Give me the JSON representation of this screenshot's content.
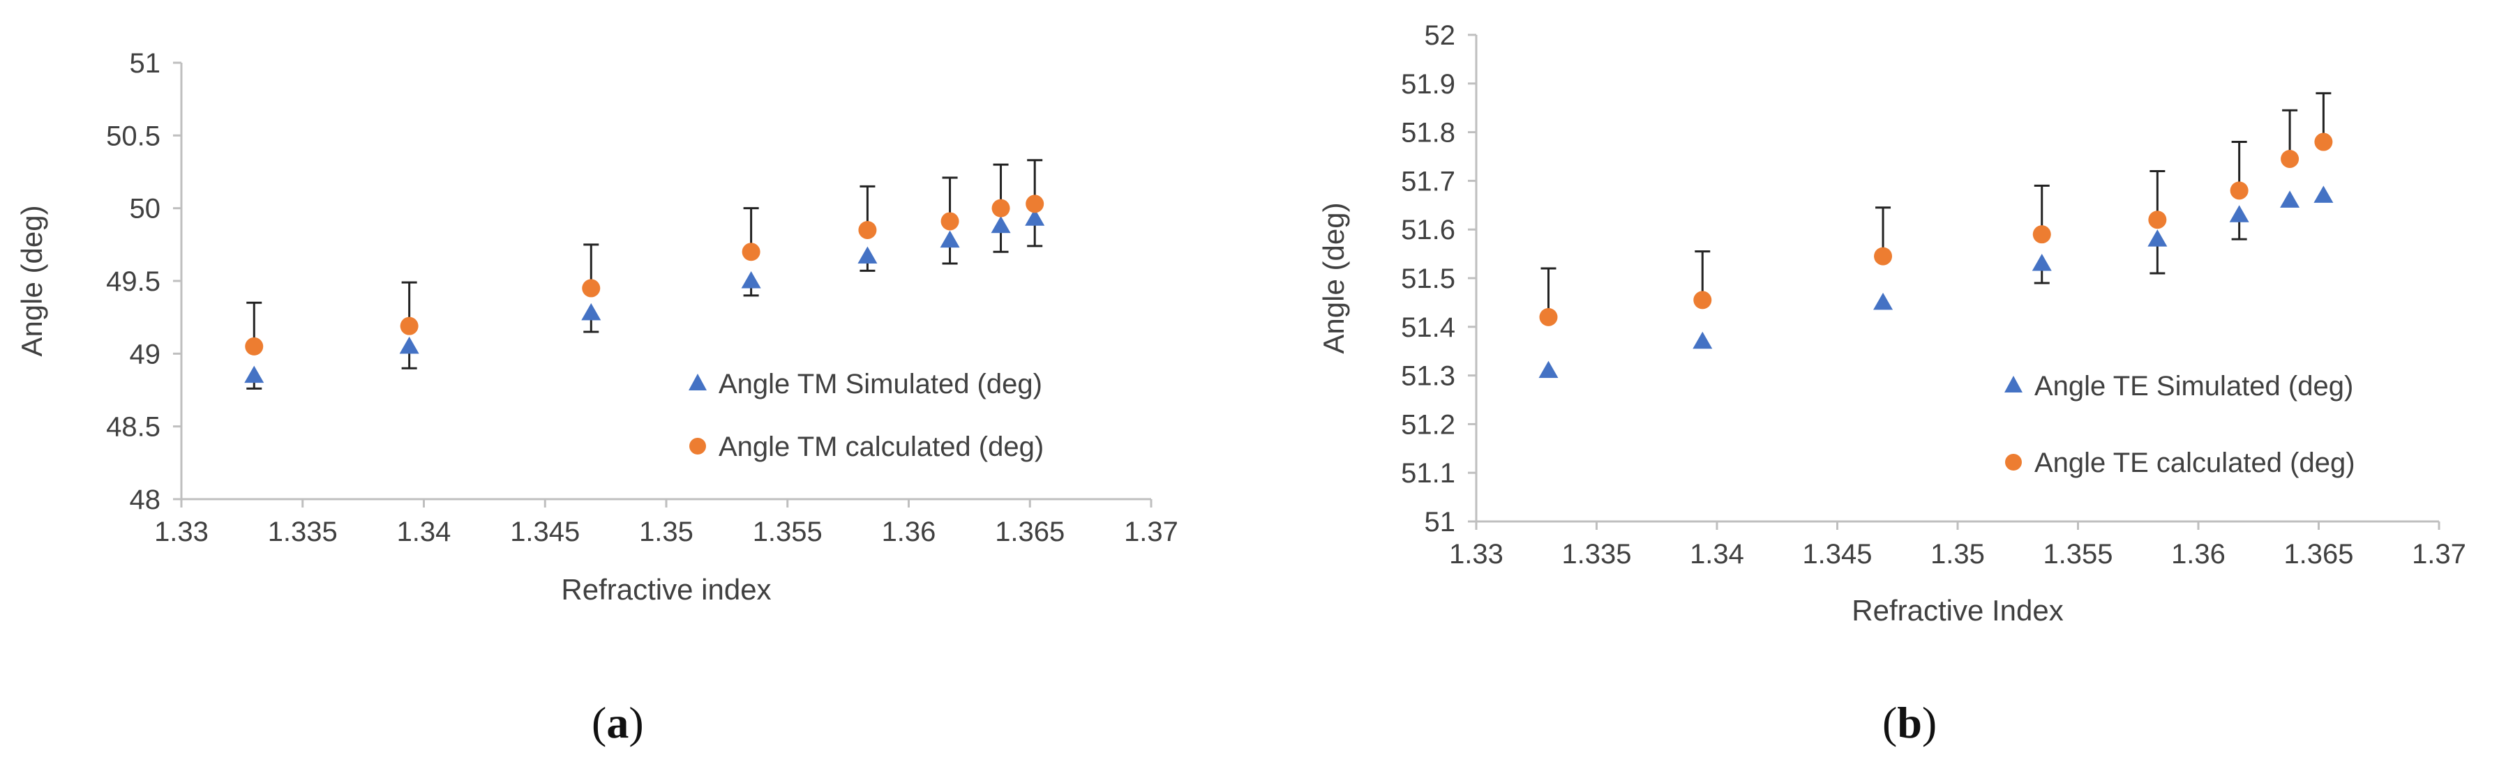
{
  "chart_data": [
    {
      "type": "scatter",
      "panel": "a",
      "title": "",
      "xlabel": "Refractive index",
      "ylabel": "Angle (deg)",
      "xlim": [
        1.33,
        1.37
      ],
      "ylim": [
        48,
        51
      ],
      "xticks": [
        "1.33",
        "1.335",
        "1.34",
        "1.345",
        "1.35",
        "1.355",
        "1.36",
        "1.365",
        "1.37"
      ],
      "yticks": [
        "48",
        "48.5",
        "49",
        "49.5",
        "50",
        "50.5",
        "51"
      ],
      "grid": false,
      "legend_position": "bottom-right",
      "series": [
        {
          "name": "Angle TM Simulated (deg)",
          "marker": "triangle",
          "color": "#4472C4",
          "x": [
            1.333,
            1.3394,
            1.3469,
            1.3535,
            1.3583,
            1.3617,
            1.3638,
            1.3652
          ],
          "y": [
            48.85,
            49.05,
            49.28,
            49.5,
            49.67,
            49.78,
            49.88,
            49.93
          ],
          "error_lower": [
            0.09,
            0.15,
            0.13,
            0.1,
            0.1,
            0.16,
            0.18,
            0.19
          ]
        },
        {
          "name": "Angle TM calculated (deg)",
          "marker": "circle",
          "color": "#ED7D31",
          "x": [
            1.333,
            1.3394,
            1.3469,
            1.3535,
            1.3583,
            1.3617,
            1.3638,
            1.3652
          ],
          "y": [
            49.05,
            49.19,
            49.45,
            49.7,
            49.85,
            49.91,
            50.0,
            50.03
          ],
          "error_upper": [
            0.3,
            0.3,
            0.3,
            0.3,
            0.3,
            0.3,
            0.3,
            0.3
          ]
        }
      ]
    },
    {
      "type": "scatter",
      "panel": "b",
      "title": "",
      "xlabel": "Refractive Index",
      "ylabel": "Angle (deg)",
      "xlim": [
        1.33,
        1.37
      ],
      "ylim": [
        51,
        52
      ],
      "xticks": [
        "1.33",
        "1.335",
        "1.34",
        "1.345",
        "1.35",
        "1.355",
        "1.36",
        "1.365",
        "1.37"
      ],
      "yticks": [
        "51",
        "51.1",
        "51.2",
        "51.3",
        "51.4",
        "51.5",
        "51.6",
        "51.7",
        "51.8",
        "51.9",
        "52"
      ],
      "grid": false,
      "legend_position": "bottom-right",
      "series": [
        {
          "name": "Angle TE Simulated (deg)",
          "marker": "triangle",
          "color": "#4472C4",
          "x": [
            1.333,
            1.3394,
            1.3469,
            1.3535,
            1.3583,
            1.3617,
            1.3638,
            1.3652
          ],
          "y": [
            51.31,
            51.37,
            51.45,
            51.53,
            51.58,
            51.63,
            51.66,
            51.67
          ],
          "error_lower": [
            0,
            0,
            0,
            0.04,
            0.07,
            0.05,
            0,
            0
          ]
        },
        {
          "name": "Angle TE calculated (deg)",
          "marker": "circle",
          "color": "#ED7D31",
          "x": [
            1.333,
            1.3394,
            1.3469,
            1.3535,
            1.3583,
            1.3617,
            1.3638,
            1.3652
          ],
          "y": [
            51.42,
            51.455,
            51.545,
            51.59,
            51.62,
            51.68,
            51.745,
            51.78
          ],
          "error_upper": [
            0.1,
            0.1,
            0.1,
            0.1,
            0.1,
            0.1,
            0.1,
            0.1
          ]
        }
      ]
    }
  ],
  "captions": {
    "a_open": "(",
    "a_letter": "a",
    "a_close": ")",
    "b_open": "(",
    "b_letter": "b",
    "b_close": ")"
  }
}
